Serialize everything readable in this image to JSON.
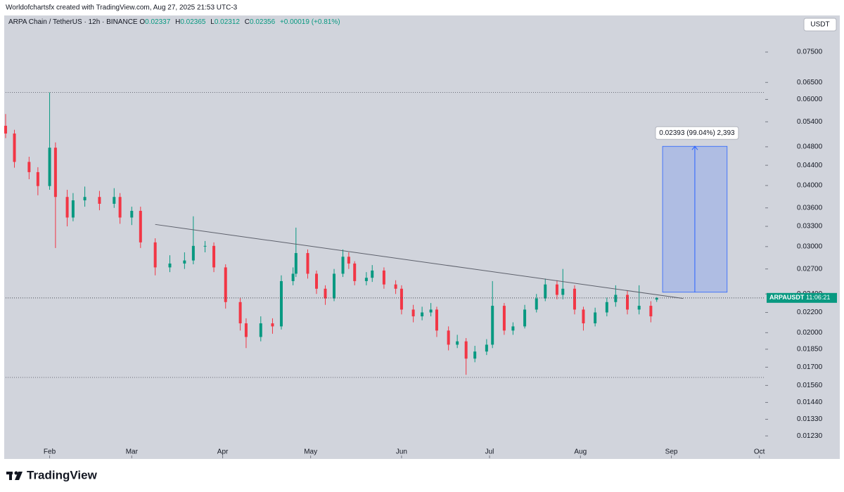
{
  "header": "Worldofchartsfx created with TradingView.com, Aug 27, 2025 21:53 UTC-3",
  "footer_brand": "TradingView",
  "currency_button": "USDT",
  "chart_data": {
    "type": "candlestick",
    "legend": {
      "symbol": "ARPA Chain / TetherUS · 12h · BINANCE",
      "keys": [
        "O",
        "H",
        "L",
        "C"
      ],
      "change": "+0.00019 (+0.81%)"
    },
    "last_label": "ARPAUSDT",
    "countdown": "11:06:21",
    "up_color": "#089981",
    "down_color": "#f23645",
    "log_scale": true,
    "x": [
      17,
      20,
      25,
      28,
      32,
      34,
      38,
      40,
      44,
      49,
      54,
      56,
      60,
      63,
      68,
      73,
      78,
      81,
      85,
      88,
      92,
      97,
      99,
      104,
      108,
      111,
      115,
      116,
      120,
      123,
      126,
      129,
      132,
      134,
      136,
      140,
      142,
      146,
      150,
      152,
      156,
      159,
      162,
      164,
      168,
      171,
      174,
      177,
      181,
      183,
      187,
      190,
      194,
      198,
      201,
      205,
      207,
      211,
      214,
      218,
      222,
      225,
      229,
      233,
      237,
      239
    ],
    "open": [
      0.053,
      0.0511,
      0.0447,
      0.0426,
      0.0399,
      0.0478,
      0.0379,
      0.0344,
      0.0373,
      0.0379,
      0.0367,
      0.0379,
      0.0344,
      0.0355,
      0.0306,
      0.0272,
      0.0277,
      0.0281,
      0.0301,
      0.0301,
      0.0272,
      0.0231,
      0.0209,
      0.0196,
      0.0209,
      0.0206,
      0.0255,
      0.0264,
      0.0291,
      0.0264,
      0.0246,
      0.0235,
      0.0264,
      0.0286,
      0.0277,
      0.0255,
      0.0259,
      0.0268,
      0.0251,
      0.0246,
      0.0223,
      0.0216,
      0.022,
      0.0223,
      0.0202,
      0.0189,
      0.0192,
      0.0177,
      0.0183,
      0.0189,
      0.0227,
      0.0202,
      0.0206,
      0.0223,
      0.0235,
      0.0251,
      0.0239,
      0.0246,
      0.0223,
      0.0209,
      0.022,
      0.0231,
      0.0239,
      0.0223,
      0.0227,
      0.02337
    ],
    "high": [
      0.056,
      0.052,
      0.0458,
      0.0436,
      0.062,
      0.049,
      0.0392,
      0.0386,
      0.0398,
      0.039,
      0.0395,
      0.0386,
      0.0362,
      0.0362,
      0.0312,
      0.0288,
      0.0292,
      0.0346,
      0.0308,
      0.0306,
      0.0276,
      0.0236,
      0.0214,
      0.0216,
      0.0214,
      0.0262,
      0.0272,
      0.0328,
      0.0296,
      0.0268,
      0.025,
      0.027,
      0.0296,
      0.0292,
      0.028,
      0.0266,
      0.0275,
      0.0272,
      0.0256,
      0.025,
      0.0228,
      0.0226,
      0.023,
      0.0226,
      0.0206,
      0.0198,
      0.0195,
      0.0188,
      0.0194,
      0.0255,
      0.023,
      0.021,
      0.0228,
      0.024,
      0.0258,
      0.0256,
      0.027,
      0.025,
      0.0226,
      0.0225,
      0.0236,
      0.025,
      0.0244,
      0.025,
      0.0232,
      0.02365
    ],
    "low": [
      0.05,
      0.0435,
      0.0412,
      0.0382,
      0.0392,
      0.0298,
      0.033,
      0.0338,
      0.0362,
      0.0356,
      0.036,
      0.0334,
      0.0332,
      0.0298,
      0.0262,
      0.0266,
      0.027,
      0.0276,
      0.0292,
      0.0266,
      0.0224,
      0.0202,
      0.0186,
      0.0192,
      0.0199,
      0.0203,
      0.025,
      0.026,
      0.0258,
      0.024,
      0.0228,
      0.0232,
      0.026,
      0.027,
      0.025,
      0.025,
      0.0254,
      0.0246,
      0.024,
      0.0218,
      0.021,
      0.0212,
      0.0216,
      0.0196,
      0.0184,
      0.0186,
      0.0164,
      0.0174,
      0.018,
      0.0186,
      0.0198,
      0.0198,
      0.0204,
      0.022,
      0.0232,
      0.0234,
      0.0234,
      0.0218,
      0.0202,
      0.0206,
      0.0216,
      0.0226,
      0.0218,
      0.0218,
      0.021,
      0.02312
    ],
    "close": [
      0.0511,
      0.0447,
      0.0426,
      0.0399,
      0.0478,
      0.0379,
      0.0344,
      0.0373,
      0.0379,
      0.0367,
      0.0379,
      0.0344,
      0.0355,
      0.0306,
      0.0272,
      0.0277,
      0.0281,
      0.0301,
      0.0301,
      0.0272,
      0.0231,
      0.0209,
      0.0196,
      0.0209,
      0.0206,
      0.0255,
      0.0264,
      0.0291,
      0.0264,
      0.0246,
      0.0235,
      0.0264,
      0.0286,
      0.0277,
      0.0255,
      0.0259,
      0.0268,
      0.0251,
      0.0246,
      0.0223,
      0.0216,
      0.022,
      0.0223,
      0.0202,
      0.0189,
      0.0192,
      0.0177,
      0.0183,
      0.0189,
      0.0227,
      0.0202,
      0.0206,
      0.0223,
      0.0235,
      0.0251,
      0.0239,
      0.0246,
      0.0223,
      0.0209,
      0.022,
      0.0231,
      0.0239,
      0.0223,
      0.0227,
      0.0216,
      0.02356
    ],
    "trendline": {
      "x": [
        68,
        248
      ],
      "y": [
        0.0333,
        0.0235
      ]
    },
    "levels": [
      0.062,
      0.0162
    ],
    "measure": {
      "x": [
        241,
        263
      ],
      "from": 0.0242,
      "to": 0.0481,
      "label": "0.02393 (99.04%) 2,393"
    },
    "xlim": [
      17,
      276
    ],
    "xticks": [
      {
        "value": 32,
        "label": "Feb"
      },
      {
        "value": 60,
        "label": "Mar"
      },
      {
        "value": 91,
        "label": "Apr"
      },
      {
        "value": 121,
        "label": "May"
      },
      {
        "value": 152,
        "label": "Jun"
      },
      {
        "value": 182,
        "label": "Jul"
      },
      {
        "value": 213,
        "label": "Aug"
      },
      {
        "value": 244,
        "label": "Sep"
      },
      {
        "value": 274,
        "label": "Oct"
      }
    ],
    "ylim": [
      0.01107,
      0.0891
    ],
    "yticks": [
      {
        "value": 0.075,
        "label": "0.07500"
      },
      {
        "value": 0.065,
        "label": "0.06500"
      },
      {
        "value": 0.06,
        "label": "0.06000"
      },
      {
        "value": 0.054,
        "label": "0.05400"
      },
      {
        "value": 0.048,
        "label": "0.04800"
      },
      {
        "value": 0.044,
        "label": "0.04400"
      },
      {
        "value": 0.04,
        "label": "0.04000"
      },
      {
        "value": 0.036,
        "label": "0.03600"
      },
      {
        "value": 0.033,
        "label": "0.03300"
      },
      {
        "value": 0.03,
        "label": "0.03000"
      },
      {
        "value": 0.027,
        "label": "0.02700"
      },
      {
        "value": 0.024,
        "label": "0.02400"
      },
      {
        "value": 0.022,
        "label": "0.02200"
      },
      {
        "value": 0.02,
        "label": "0.02000"
      },
      {
        "value": 0.0185,
        "label": "0.01850"
      },
      {
        "value": 0.017,
        "label": "0.01700"
      },
      {
        "value": 0.0156,
        "label": "0.01560"
      },
      {
        "value": 0.0144,
        "label": "0.01440"
      },
      {
        "value": 0.0133,
        "label": "0.01330"
      },
      {
        "value": 0.0123,
        "label": "0.01230"
      }
    ]
  }
}
